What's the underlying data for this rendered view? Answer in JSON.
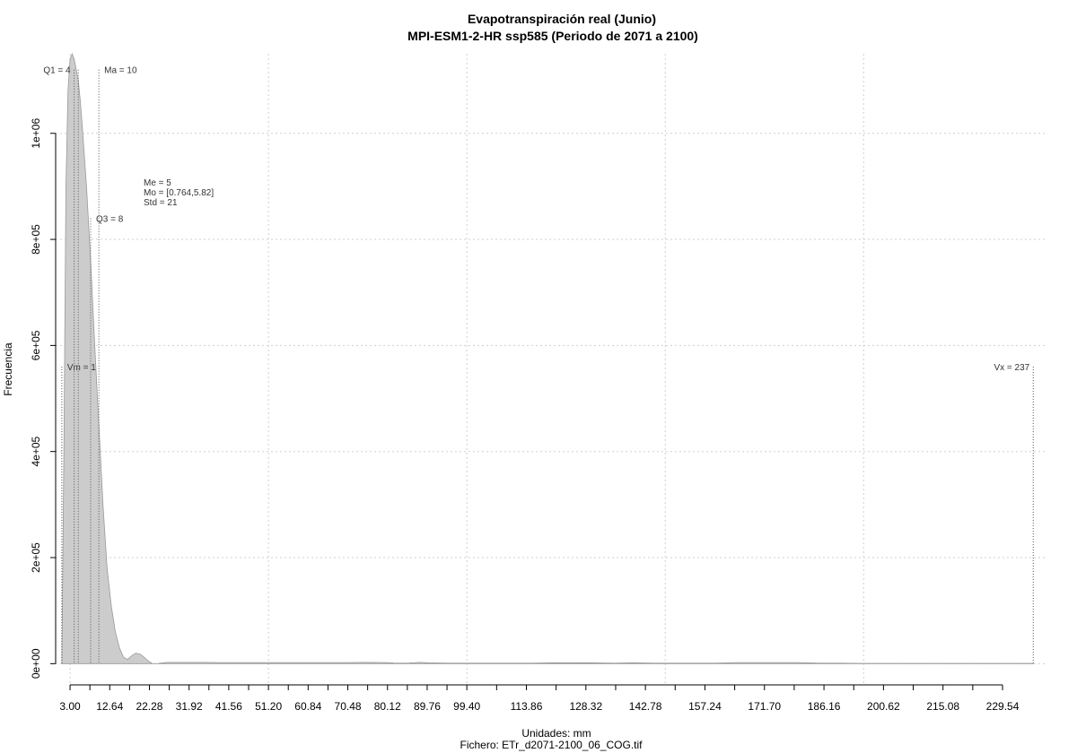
{
  "chart_data": {
    "type": "area",
    "title": "Evapotranspiración real (Junio)",
    "subtitle": "MPI-ESM1-2-HR ssp585 (Periodo de 2071 a 2100)",
    "xlabel": "Unidades: mm",
    "ylabel": "Frecuencia",
    "file_caption": "Fichero: ETr_d2071-2100_06_COG.tif",
    "xlim": [
      -0.5,
      240
    ],
    "ylim": [
      -40000,
      1150000
    ],
    "x_ticks": [
      3.0,
      12.64,
      22.28,
      31.92,
      41.56,
      51.2,
      60.84,
      70.48,
      80.12,
      89.76,
      99.4,
      113.86,
      128.32,
      142.78,
      157.24,
      171.7,
      186.16,
      200.62,
      215.08,
      229.54
    ],
    "x_tick_labels": [
      "3.00",
      "12.64",
      "22.28",
      "31.92",
      "41.56",
      "51.20",
      "60.84",
      "70.48",
      "80.12",
      "89.76",
      "99.40",
      "113.86",
      "128.32",
      "142.78",
      "157.24",
      "171.70",
      "186.16",
      "200.62",
      "215.08",
      "229.54"
    ],
    "y_ticks": [
      0,
      200000,
      400000,
      600000,
      800000,
      1000000
    ],
    "y_tick_labels": [
      "0e+00",
      "2e+05",
      "4e+05",
      "6e+05",
      "8e+05",
      "1e+06"
    ],
    "grid": true,
    "x_grid": [
      3.0,
      51.2,
      99.4,
      147.6,
      195.8
    ],
    "y_grid": [
      0,
      200000,
      400000,
      600000,
      800000,
      1000000
    ],
    "fill_color": "#cccccc",
    "line_color": "#999999",
    "series": [
      {
        "x": [
          1,
          1.5,
          2,
          2.5,
          3,
          3.5,
          4,
          4.5,
          5,
          5.5,
          6,
          7,
          8,
          9,
          10,
          11,
          12,
          13,
          14,
          15,
          16,
          17,
          18,
          19,
          20,
          21,
          22,
          23,
          24,
          25,
          26,
          27,
          28,
          29,
          30,
          35,
          40,
          50,
          60,
          70,
          75,
          80,
          82,
          85,
          88,
          90,
          95,
          100,
          105,
          110,
          115,
          120,
          125,
          130,
          135,
          140,
          145,
          150,
          155,
          160,
          165,
          170,
          175,
          180,
          185,
          190,
          195,
          200,
          210,
          220,
          230,
          237
        ],
        "y": [
          0,
          400000,
          900000,
          1080000,
          1140000,
          1150000,
          1140000,
          1120000,
          1100000,
          1060000,
          1010000,
          900000,
          760000,
          600000,
          450000,
          300000,
          180000,
          110000,
          60000,
          30000,
          12000,
          8000,
          15000,
          20000,
          18000,
          12000,
          5000,
          0,
          0,
          1000,
          2000,
          2500,
          2500,
          2500,
          2500,
          2500,
          2000,
          2000,
          2000,
          2000,
          2500,
          2000,
          1000,
          1000,
          2500,
          1500,
          1000,
          1000,
          1000,
          1000,
          1000,
          1500,
          1500,
          1500,
          1000,
          1500,
          1000,
          1000,
          1000,
          1000,
          2000,
          2000,
          2000,
          2000,
          1000,
          1000,
          500,
          500,
          500,
          500,
          500,
          500
        ]
      }
    ],
    "vlines": [
      {
        "x": 1.0,
        "label": "Vm = 1",
        "y": 560000
      },
      {
        "x": 4.0,
        "label": "Q1 = 4",
        "y": 1120000
      },
      {
        "x": 5.0,
        "label": "",
        "y": 1120000
      },
      {
        "x": 8.0,
        "label": "Q3 = 8",
        "y": 840000
      },
      {
        "x": 10.0,
        "label": "Ma = 10",
        "y": 1120000
      },
      {
        "x": 237.0,
        "label": "Vx = 237",
        "y": 560000
      }
    ],
    "stats": [
      "Me = 5",
      "Mo = [0.764,5.82]",
      "Std = 21"
    ]
  }
}
